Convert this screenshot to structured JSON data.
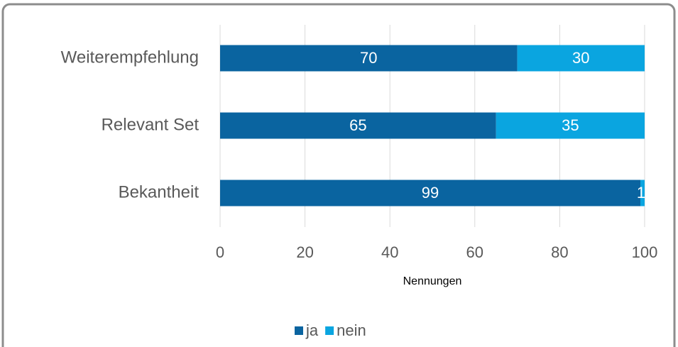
{
  "chart_data": {
    "type": "stacked_barh",
    "categories": [
      "Weiterempfehlung",
      "Relevant Set",
      "Bekantheit"
    ],
    "series": [
      {
        "name": "ja",
        "color": "#0a64a0",
        "values": [
          70,
          65,
          99
        ]
      },
      {
        "name": "nein",
        "color": "#0aa5e0",
        "values": [
          30,
          35,
          1
        ]
      }
    ],
    "xlabel": "Nennungen",
    "xlim": [
      0,
      100
    ],
    "xticks": [
      0,
      20,
      40,
      60,
      80,
      100
    ],
    "grid": true,
    "legend": "bottom"
  }
}
